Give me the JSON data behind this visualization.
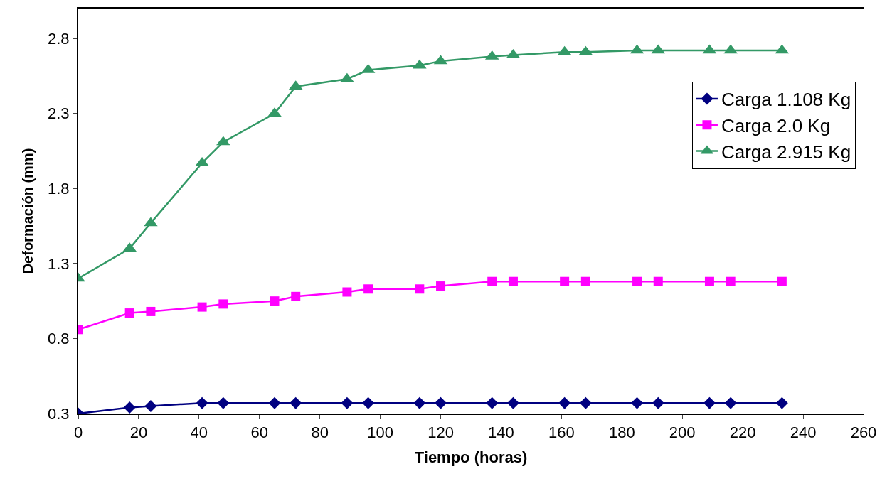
{
  "chart_data": {
    "type": "line",
    "xlabel": "Tiempo (horas)",
    "ylabel": "Deformación (mm)",
    "x": [
      0,
      17,
      24,
      41,
      48,
      65,
      72,
      89,
      96,
      113,
      120,
      137,
      144,
      161,
      168,
      185,
      192,
      209,
      216,
      233
    ],
    "series": [
      {
        "name": "Carga 1.108 Kg",
        "color": "#000080",
        "marker": "diamond",
        "values": [
          0.3,
          0.34,
          0.35,
          0.37,
          0.37,
          0.37,
          0.37,
          0.37,
          0.37,
          0.37,
          0.37,
          0.37,
          0.37,
          0.37,
          0.37,
          0.37,
          0.37,
          0.37,
          0.37,
          0.37
        ]
      },
      {
        "name": "Carga 2.0 Kg",
        "color": "#ff00ff",
        "marker": "square",
        "values": [
          0.86,
          0.97,
          0.98,
          1.01,
          1.03,
          1.05,
          1.08,
          1.11,
          1.13,
          1.13,
          1.15,
          1.18,
          1.18,
          1.18,
          1.18,
          1.18,
          1.18,
          1.18,
          1.18,
          1.18
        ]
      },
      {
        "name": "Carga 2.915 Kg",
        "color": "#339966",
        "marker": "triangle",
        "values": [
          1.2,
          1.4,
          1.57,
          1.97,
          2.11,
          2.3,
          2.48,
          2.53,
          2.59,
          2.62,
          2.65,
          2.68,
          2.69,
          2.71,
          2.71,
          2.72,
          2.72,
          2.72,
          2.72,
          2.72
        ]
      }
    ],
    "xlim": [
      0,
      260
    ],
    "xticks": [
      0,
      20,
      40,
      60,
      80,
      100,
      120,
      140,
      160,
      180,
      200,
      220,
      240,
      260
    ],
    "ylim": [
      0.3,
      3.0
    ],
    "yticks": [
      0.3,
      0.8,
      1.3,
      1.8,
      2.3,
      2.8
    ],
    "legend": "top right",
    "line_style": "solid"
  }
}
